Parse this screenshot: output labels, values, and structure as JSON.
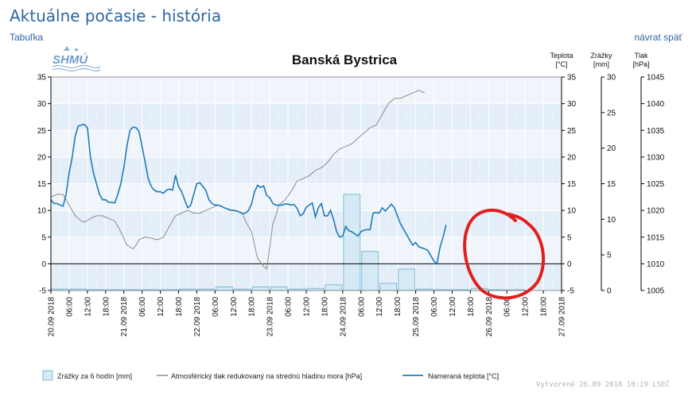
{
  "page": {
    "title": "Aktuálne počasie - história",
    "link_table": "Tabuľka",
    "link_back": "návrat späť",
    "footer": "Vytvorené 26.09 2018 10:19 LSEČ",
    "logo_text": "SHMÚ"
  },
  "chart_data": {
    "type": "line",
    "title": "Banská Bystrica",
    "axes": {
      "temperature": {
        "label": "Teplota",
        "unit": "[°C]",
        "range": [
          -5,
          35
        ],
        "ticks": [
          -5,
          0,
          5,
          10,
          15,
          20,
          25,
          30,
          35
        ]
      },
      "precip": {
        "label": "Zrážky",
        "unit": "[mm]",
        "range": [
          0,
          30
        ],
        "ticks": [
          0,
          5,
          10,
          15,
          20,
          25,
          30
        ]
      },
      "pressure": {
        "label": "Tlak",
        "unit": "[hPa]",
        "range": [
          1005,
          1045
        ],
        "ticks": [
          1005,
          1010,
          1015,
          1020,
          1025,
          1030,
          1035,
          1040,
          1045
        ]
      }
    },
    "x_range_hours": [
      0,
      168
    ],
    "x_ticks": [
      {
        "h": 0,
        "label": "20.09 2018"
      },
      {
        "h": 6,
        "label": "06:00"
      },
      {
        "h": 12,
        "label": "12:00"
      },
      {
        "h": 18,
        "label": "18:00"
      },
      {
        "h": 24,
        "label": "21.09 2018"
      },
      {
        "h": 30,
        "label": "06:00"
      },
      {
        "h": 36,
        "label": "12:00"
      },
      {
        "h": 42,
        "label": "18:00"
      },
      {
        "h": 48,
        "label": "22.09 2018"
      },
      {
        "h": 54,
        "label": "06:00"
      },
      {
        "h": 60,
        "label": "12:00"
      },
      {
        "h": 66,
        "label": "18:00"
      },
      {
        "h": 72,
        "label": "23.09 2018"
      },
      {
        "h": 78,
        "label": "06:00"
      },
      {
        "h": 84,
        "label": "12:00"
      },
      {
        "h": 90,
        "label": "18:00"
      },
      {
        "h": 96,
        "label": "24.09 2018"
      },
      {
        "h": 102,
        "label": "06:00"
      },
      {
        "h": 108,
        "label": "12:00"
      },
      {
        "h": 114,
        "label": "18:00"
      },
      {
        "h": 120,
        "label": "25.09 2018"
      },
      {
        "h": 126,
        "label": "06:00"
      },
      {
        "h": 132,
        "label": "12:00"
      },
      {
        "h": 138,
        "label": "18:00"
      },
      {
        "h": 144,
        "label": "26.09 2018"
      },
      {
        "h": 150,
        "label": "06:00"
      },
      {
        "h": 156,
        "label": "12:00"
      },
      {
        "h": 162,
        "label": "18:00"
      },
      {
        "h": 168,
        "label": "27.09 2018"
      }
    ],
    "legend": [
      {
        "key": "precip",
        "label": "Zrážky za 6 hodín [mm]"
      },
      {
        "key": "pressure",
        "label": "Atmosférický tlak redukovaný na strednú hladinu mora [hPa]"
      },
      {
        "key": "temperature",
        "label": "Nameraná teplota [°C]"
      }
    ],
    "colors": {
      "temperature": "#1f7ab8",
      "pressure": "#8c8c8c",
      "precip_fill": "#d6eaf5",
      "precip_stroke": "#7fb8d8",
      "annotation": "#e02020"
    },
    "series": [
      {
        "name": "Nameraná teplota [°C]",
        "key": "temperature",
        "axis": "temperature",
        "points": [
          [
            0,
            12
          ],
          [
            1,
            11.3
          ],
          [
            2,
            11.3
          ],
          [
            3,
            11
          ],
          [
            4,
            10.8
          ],
          [
            5,
            13
          ],
          [
            6,
            17
          ],
          [
            7,
            20
          ],
          [
            8,
            24
          ],
          [
            9,
            25.8
          ],
          [
            10,
            26
          ],
          [
            11,
            26.1
          ],
          [
            12,
            25.5
          ],
          [
            13,
            20
          ],
          [
            14,
            17
          ],
          [
            15,
            15
          ],
          [
            16,
            13
          ],
          [
            17,
            12
          ],
          [
            18,
            12
          ],
          [
            19,
            11.5
          ],
          [
            20,
            11.5
          ],
          [
            21,
            11.4
          ],
          [
            22,
            13
          ],
          [
            23,
            15
          ],
          [
            24,
            18
          ],
          [
            25,
            22
          ],
          [
            26,
            25
          ],
          [
            27,
            25.6
          ],
          [
            28,
            25.5
          ],
          [
            29,
            24.8
          ],
          [
            30,
            22
          ],
          [
            31,
            19
          ],
          [
            32,
            16
          ],
          [
            33,
            14.5
          ],
          [
            34,
            13.8
          ],
          [
            35,
            13.5
          ],
          [
            36,
            13.5
          ],
          [
            37,
            13.2
          ],
          [
            38,
            13.8
          ],
          [
            39,
            14
          ],
          [
            40,
            13.8
          ],
          [
            41,
            16.6
          ],
          [
            42,
            14.5
          ],
          [
            43,
            13.5
          ],
          [
            44,
            12
          ],
          [
            45,
            10.5
          ],
          [
            46,
            11
          ],
          [
            47,
            13
          ],
          [
            48,
            15
          ],
          [
            49,
            15.2
          ],
          [
            50,
            14.5
          ],
          [
            51,
            13.7
          ],
          [
            52,
            12
          ],
          [
            53,
            11.3
          ],
          [
            54,
            11
          ],
          [
            55,
            11
          ],
          [
            56,
            10.8
          ],
          [
            57,
            10.5
          ],
          [
            58,
            10.3
          ],
          [
            59,
            10.1
          ],
          [
            60,
            10
          ],
          [
            61,
            9.9
          ],
          [
            62,
            9.7
          ],
          [
            63,
            9.4
          ],
          [
            64,
            9.5
          ],
          [
            65,
            10
          ],
          [
            66,
            11.2
          ],
          [
            67,
            13.5
          ],
          [
            68,
            14.7
          ],
          [
            69,
            14.3
          ],
          [
            70,
            14.6
          ],
          [
            71,
            12.8
          ],
          [
            72,
            12.4
          ],
          [
            73,
            11.3
          ],
          [
            74,
            11
          ],
          [
            75,
            11
          ],
          [
            76,
            11
          ],
          [
            77,
            11.2
          ],
          [
            78,
            11.2
          ],
          [
            79,
            11
          ],
          [
            80,
            11.1
          ],
          [
            81,
            10.4
          ],
          [
            82,
            9
          ],
          [
            83,
            9.4
          ],
          [
            84,
            10.6
          ],
          [
            85,
            11
          ],
          [
            86,
            11.4
          ],
          [
            87,
            8.8
          ],
          [
            88,
            10.5
          ],
          [
            89,
            11.3
          ],
          [
            90,
            9
          ],
          [
            91,
            9
          ],
          [
            92,
            10
          ],
          [
            93,
            8.3
          ],
          [
            94,
            6
          ],
          [
            95,
            5
          ],
          [
            96,
            5.2
          ],
          [
            97,
            7
          ],
          [
            98,
            6.2
          ],
          [
            99,
            6
          ],
          [
            100,
            5.6
          ],
          [
            101,
            5.2
          ],
          [
            102,
            6
          ],
          [
            103,
            6.3
          ],
          [
            104,
            6.4
          ],
          [
            105,
            6.4
          ],
          [
            106,
            9.5
          ],
          [
            107,
            9.6
          ],
          [
            108,
            9.5
          ],
          [
            109,
            10.5
          ],
          [
            110,
            9.9
          ],
          [
            111,
            10.5
          ],
          [
            112,
            11.2
          ],
          [
            113,
            10.5
          ],
          [
            114,
            9
          ],
          [
            115,
            7.5
          ],
          [
            116,
            6.5
          ],
          [
            117,
            5.5
          ],
          [
            118,
            4.5
          ],
          [
            119,
            3.5
          ],
          [
            120,
            4
          ],
          [
            121,
            3.2
          ],
          [
            122,
            3
          ],
          [
            123,
            2.8
          ],
          [
            124,
            2.5
          ],
          [
            125,
            1.5
          ],
          [
            126,
            0.5
          ],
          [
            127,
            0
          ],
          [
            128,
            3
          ],
          [
            129,
            5
          ],
          [
            130,
            7.3
          ]
        ]
      },
      {
        "name": "Atmosférický tlak redukovaný na strednú hladinu mora [hPa]",
        "key": "pressure",
        "axis": "pressure",
        "points": [
          [
            0,
            1022.5
          ],
          [
            2,
            1023
          ],
          [
            4,
            1023
          ],
          [
            6,
            1021
          ],
          [
            8,
            1019
          ],
          [
            10,
            1018
          ],
          [
            11,
            1017.8
          ],
          [
            13,
            1018.5
          ],
          [
            15,
            1019
          ],
          [
            17,
            1019
          ],
          [
            19,
            1018.5
          ],
          [
            21,
            1018
          ],
          [
            23,
            1016
          ],
          [
            25,
            1013.5
          ],
          [
            27,
            1012.8
          ],
          [
            28,
            1013.5
          ],
          [
            29,
            1014.5
          ],
          [
            31,
            1015
          ],
          [
            33,
            1014.8
          ],
          [
            35,
            1014.5
          ],
          [
            37,
            1015
          ],
          [
            39,
            1017
          ],
          [
            41,
            1019
          ],
          [
            43,
            1019.5
          ],
          [
            45,
            1020
          ],
          [
            47,
            1019.5
          ],
          [
            49,
            1019.5
          ],
          [
            51,
            1020
          ],
          [
            53,
            1020.5
          ],
          [
            55,
            1021
          ],
          [
            57,
            1020.5
          ],
          [
            59,
            1020
          ],
          [
            61,
            1020
          ],
          [
            63,
            1019.5
          ],
          [
            64,
            1018
          ],
          [
            66,
            1016
          ],
          [
            67,
            1013.5
          ],
          [
            68,
            1011
          ],
          [
            70,
            1009.5
          ],
          [
            71,
            1009
          ],
          [
            72,
            1013
          ],
          [
            73,
            1017.5
          ],
          [
            74,
            1019
          ],
          [
            75,
            1021
          ],
          [
            77,
            1022
          ],
          [
            79,
            1023.5
          ],
          [
            81,
            1025.5
          ],
          [
            83,
            1026
          ],
          [
            85,
            1026.5
          ],
          [
            87,
            1027.5
          ],
          [
            89,
            1028
          ],
          [
            91,
            1029
          ],
          [
            93,
            1030.5
          ],
          [
            95,
            1031.5
          ],
          [
            97,
            1032
          ],
          [
            99,
            1032.5
          ],
          [
            101,
            1033.5
          ],
          [
            103,
            1034.5
          ],
          [
            105,
            1035.5
          ],
          [
            107,
            1036
          ],
          [
            109,
            1038
          ],
          [
            111,
            1040
          ],
          [
            113,
            1041
          ],
          [
            115,
            1041
          ],
          [
            117,
            1041.5
          ],
          [
            119,
            1042
          ],
          [
            121,
            1042.5
          ],
          [
            123,
            1042
          ]
        ]
      },
      {
        "name": "Zrážky za 6 hodín [mm]",
        "key": "precip",
        "axis": "precip",
        "bars": [
          [
            0,
            0.2
          ],
          [
            6,
            0.2
          ],
          [
            12,
            0.1
          ],
          [
            18,
            0.1
          ],
          [
            24,
            0.1
          ],
          [
            30,
            0.1
          ],
          [
            36,
            0.1
          ],
          [
            42,
            0.2
          ],
          [
            48,
            0.2
          ],
          [
            54,
            0.5
          ],
          [
            60,
            0.2
          ],
          [
            66,
            0.5
          ],
          [
            72,
            0.5
          ],
          [
            78,
            0.2
          ],
          [
            84,
            0.3
          ],
          [
            90,
            0.8
          ],
          [
            96,
            13.5
          ],
          [
            102,
            5.5
          ],
          [
            108,
            1
          ],
          [
            114,
            3
          ],
          [
            120,
            0.2
          ],
          [
            126,
            0.1
          ],
          [
            132,
            0.1
          ],
          [
            138,
            0.3
          ],
          [
            144,
            0.1
          ],
          [
            150,
            0.1
          ]
        ]
      }
    ]
  }
}
